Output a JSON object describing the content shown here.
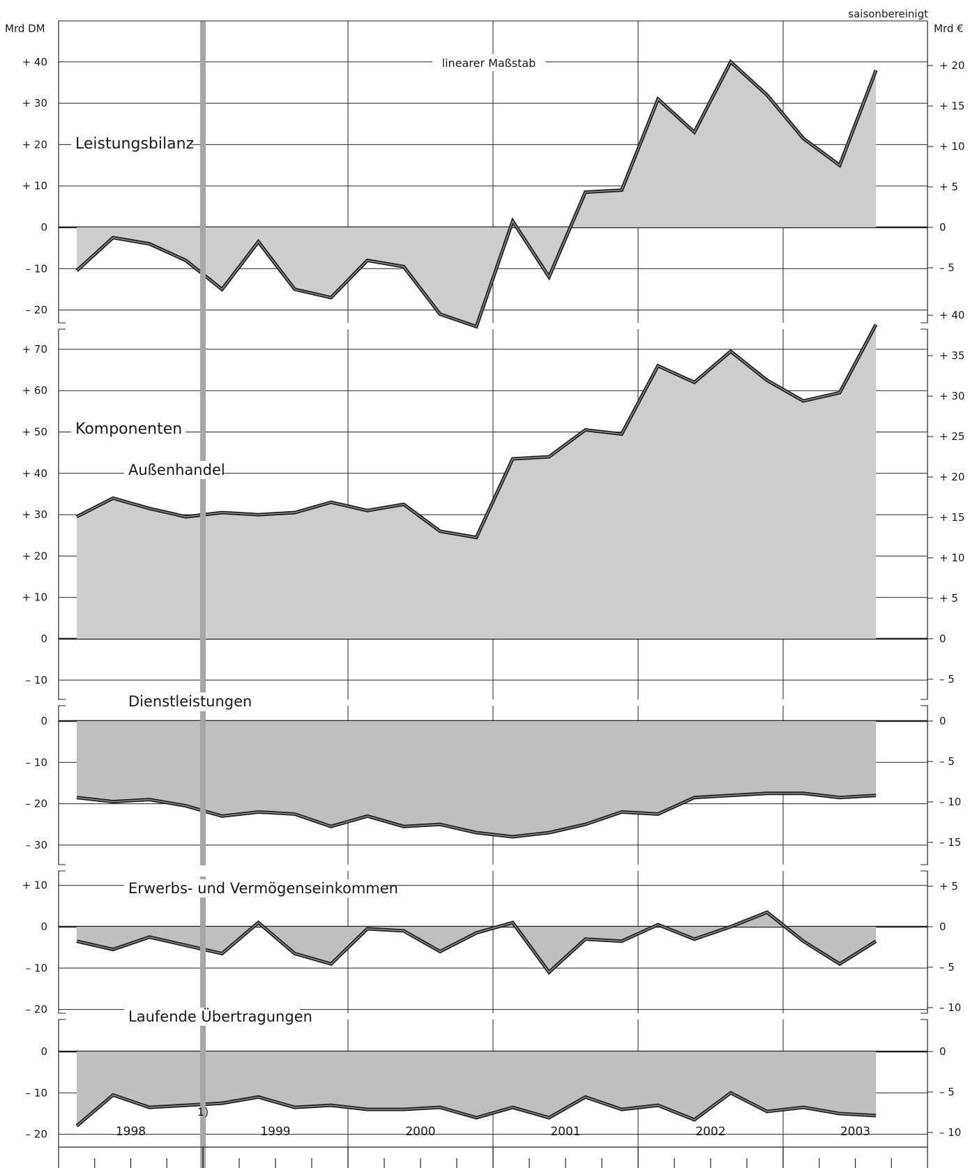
{
  "chart_data": {
    "type": "area",
    "note": "saisonbereinigt",
    "scale_label": "linearer Maßstab",
    "left_unit": "Mrd DM",
    "right_unit": "Mrd €",
    "footnote_marker": "1)",
    "years": [
      "1998",
      "1999",
      "2000",
      "2001",
      "2002",
      "2003"
    ],
    "x_quarters": [
      "1998 Q1",
      "1998 Q2",
      "1998 Q3",
      "1998 Q4",
      "1999 Q1",
      "1999 Q2",
      "1999 Q3",
      "1999 Q4",
      "2000 Q1",
      "2000 Q2",
      "2000 Q3",
      "2000 Q4",
      "2001 Q1",
      "2001 Q2",
      "2001 Q3",
      "2001 Q4",
      "2002 Q1",
      "2002 Q2",
      "2002 Q3",
      "2002 Q4",
      "2003 Q1",
      "2003 Q2",
      "2003 Q3"
    ],
    "panels": [
      {
        "name": "Leistungsbilanz",
        "title": "Leistungsbilanz",
        "title_style": "heading",
        "left_ticks": [
          "+ 40",
          "+ 30",
          "+ 20",
          "+ 10",
          "0",
          "– 10",
          "– 20"
        ],
        "right_ticks": [
          "+ 20",
          "+ 15",
          "+ 10",
          "+ 5",
          "0",
          "– 5"
        ],
        "values_dm": [
          -10.5,
          -2.5,
          -4,
          -8,
          -15,
          -3.5,
          -15,
          -17,
          -8,
          -9.5,
          -21,
          -24,
          1.5,
          -12,
          8.5,
          9,
          31,
          23,
          40,
          32,
          21.5,
          15,
          38
        ],
        "ylim_dm": [
          -24.5,
          41
        ]
      },
      {
        "name": "Außenhandel",
        "title": "Komponenten",
        "label": "Außenhandel",
        "title_style": "heading",
        "left_ticks": [
          "+ 70",
          "+ 60",
          "+ 50",
          "+ 40",
          "+ 30",
          "+ 20",
          "+ 10",
          "0",
          "– 10"
        ],
        "right_ticks": [
          "+ 40",
          "+ 35",
          "+ 30",
          "+ 25",
          "+ 20",
          "+ 15",
          "+ 10",
          "+ 5",
          "0",
          "– 5"
        ],
        "values_dm": [
          29.5,
          34,
          31.5,
          29.5,
          30.5,
          30,
          30.5,
          33,
          31,
          32.5,
          26,
          24.5,
          43.5,
          44,
          50.5,
          49.5,
          66,
          62,
          69.5,
          62.5,
          57.5,
          59.5,
          76
        ],
        "ylim_dm": [
          -13,
          72
        ]
      },
      {
        "name": "Dienstleistungen",
        "label": "Dienstleistungen",
        "left_ticks": [
          "0",
          "– 10",
          "– 20",
          "– 30"
        ],
        "right_ticks": [
          "0",
          "– 5",
          "– 10",
          "– 15"
        ],
        "values_dm": [
          -18.5,
          -19.5,
          -19,
          -20.5,
          -23,
          -22,
          -22.5,
          -25.5,
          -23,
          -25.5,
          -25,
          -27,
          -28,
          -27,
          -25,
          -22,
          -22.5,
          -18.5,
          -18,
          -17.5,
          -17.5,
          -18.5,
          -18
        ],
        "ylim_dm": [
          -34,
          2
        ]
      },
      {
        "name": "Erwerbs- und Vermögenseinkommen",
        "label": "Erwerbs- und Vermögenseinkommen",
        "left_ticks": [
          "+ 10",
          "0",
          "– 10",
          "– 20"
        ],
        "right_ticks": [
          "+ 5",
          "0",
          "– 5",
          "– 10"
        ],
        "values_dm": [
          -3.5,
          -5.5,
          -2.5,
          -4.5,
          -6.5,
          1,
          -6.5,
          -9,
          -0.5,
          -1,
          -6,
          -1.5,
          1,
          -11,
          -3,
          -3.5,
          0.5,
          -3,
          0,
          3.5,
          -3.5,
          -9,
          -3.5
        ],
        "ylim_dm": [
          -24,
          13
        ]
      },
      {
        "name": "Laufende Übertragungen",
        "label": "Laufende Übertragungen",
        "left_ticks": [
          "0",
          "– 10",
          "– 20"
        ],
        "right_ticks": [
          "0",
          "– 5",
          "– 10"
        ],
        "values_dm": [
          -18,
          -10.5,
          -13.5,
          -13,
          -12.5,
          -11,
          -13.5,
          -13,
          -14,
          -14,
          -13.5,
          -16,
          -13.5,
          -16,
          -11,
          -14,
          -13,
          -16.5,
          -10,
          -14.5,
          -13.5,
          -15,
          -15.5
        ],
        "ylim_dm": [
          -23,
          2
        ]
      }
    ],
    "colors": {
      "fill_light": "#cdcdcd",
      "fill_dark": "#bfbfbf",
      "line": "#222222",
      "break_bar": "#a6a6a6",
      "grid": "#222222"
    }
  }
}
